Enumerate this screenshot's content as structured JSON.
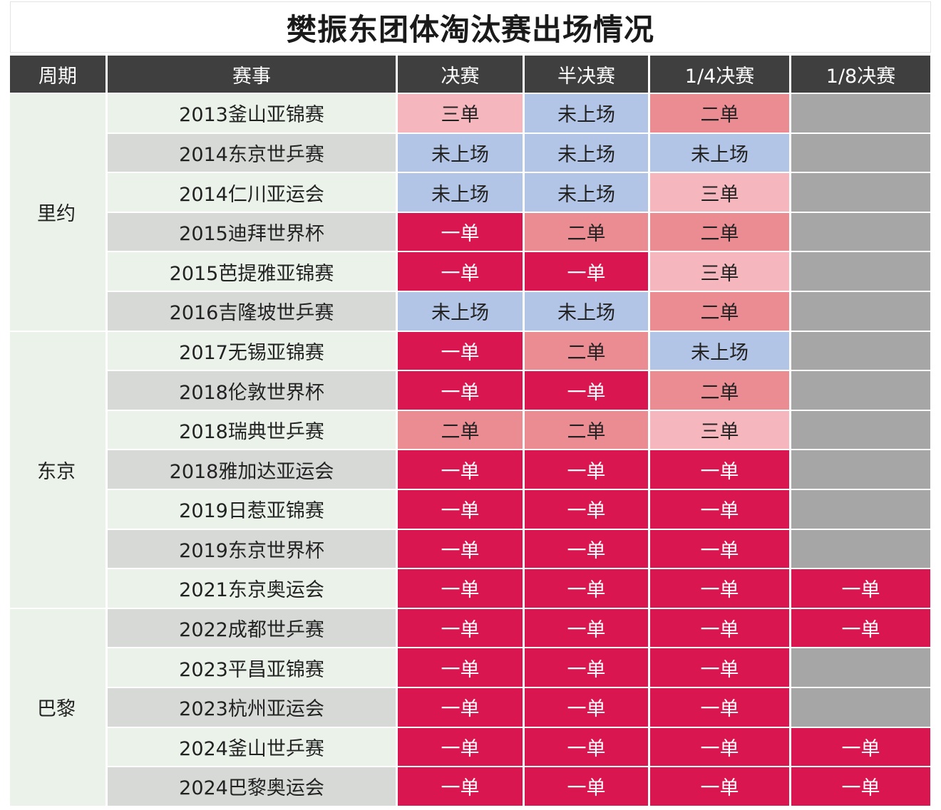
{
  "title": "樊振东团体淘汰赛出场情况",
  "headers": [
    "周期",
    "赛事",
    "决赛",
    "半决赛",
    "1/4决赛",
    "1/8决赛"
  ],
  "periods": [
    {
      "label": "里约",
      "rows": 6
    },
    {
      "label": "东京",
      "rows": 7
    },
    {
      "label": "巴黎",
      "rows": 5
    }
  ],
  "legend_colors": {
    "一单": "#d9164f",
    "二单": "#ea8c92",
    "三单": "#f5b7bd",
    "未上场": "#b3c5e6",
    "none": "#a6a6a6"
  },
  "rows": [
    {
      "event": "2013釜山亚锦赛",
      "final": "三单",
      "semi": "未上场",
      "quarter": "二单",
      "r16": ""
    },
    {
      "event": "2014东京世乒赛",
      "final": "未上场",
      "semi": "未上场",
      "quarter": "未上场",
      "r16": ""
    },
    {
      "event": "2014仁川亚运会",
      "final": "未上场",
      "semi": "未上场",
      "quarter": "三单",
      "r16": ""
    },
    {
      "event": "2015迪拜世界杯",
      "final": "一单",
      "semi": "二单",
      "quarter": "二单",
      "r16": ""
    },
    {
      "event": "2015芭提雅亚锦赛",
      "final": "一单",
      "semi": "一单",
      "quarter": "三单",
      "r16": ""
    },
    {
      "event": "2016吉隆坡世乒赛",
      "final": "未上场",
      "semi": "未上场",
      "quarter": "二单",
      "r16": ""
    },
    {
      "event": "2017无锡亚锦赛",
      "final": "一单",
      "semi": "二单",
      "quarter": "未上场",
      "r16": ""
    },
    {
      "event": "2018伦敦世界杯",
      "final": "一单",
      "semi": "一单",
      "quarter": "二单",
      "r16": ""
    },
    {
      "event": "2018瑞典世乒赛",
      "final": "二单",
      "semi": "二单",
      "quarter": "三单",
      "r16": ""
    },
    {
      "event": "2018雅加达亚运会",
      "final": "一单",
      "semi": "一单",
      "quarter": "一单",
      "r16": ""
    },
    {
      "event": "2019日惹亚锦赛",
      "final": "一单",
      "semi": "一单",
      "quarter": "一单",
      "r16": ""
    },
    {
      "event": "2019东京世界杯",
      "final": "一单",
      "semi": "一单",
      "quarter": "一单",
      "r16": ""
    },
    {
      "event": "2021东京奥运会",
      "final": "一单",
      "semi": "一单",
      "quarter": "一单",
      "r16": "一单"
    },
    {
      "event": "2022成都世乒赛",
      "final": "一单",
      "semi": "一单",
      "quarter": "一单",
      "r16": "一单"
    },
    {
      "event": "2023平昌亚锦赛",
      "final": "一单",
      "semi": "一单",
      "quarter": "一单",
      "r16": ""
    },
    {
      "event": "2023杭州亚运会",
      "final": "一单",
      "semi": "一单",
      "quarter": "一单",
      "r16": ""
    },
    {
      "event": "2024釜山世乒赛",
      "final": "一单",
      "semi": "一单",
      "quarter": "一单",
      "r16": "一单"
    },
    {
      "event": "2024巴黎奥运会",
      "final": "一单",
      "semi": "一单",
      "quarter": "一单",
      "r16": "一单"
    }
  ]
}
